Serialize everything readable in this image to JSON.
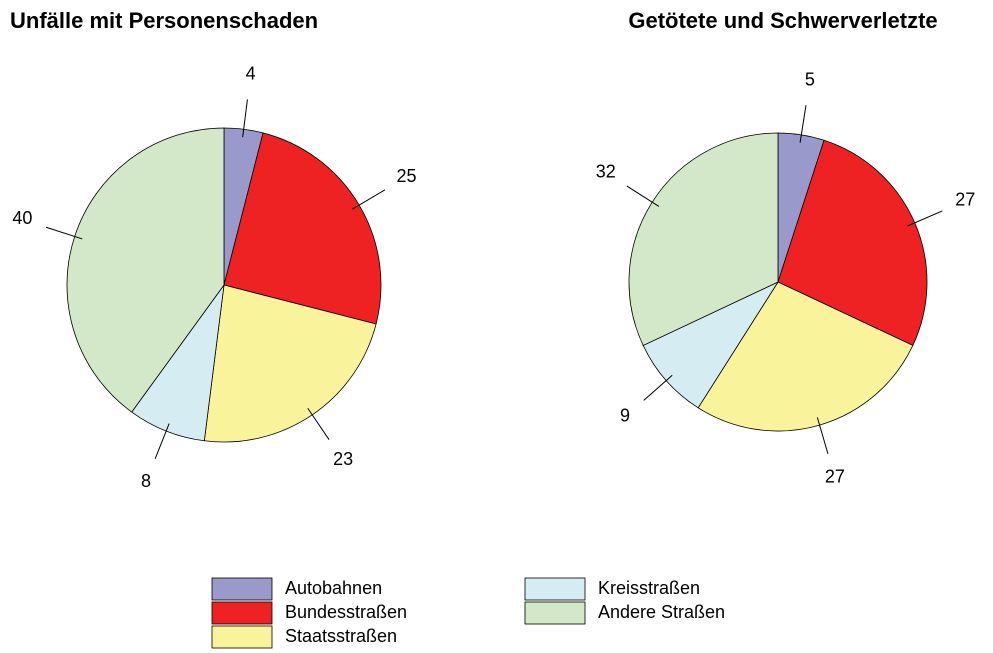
{
  "chart_data": [
    {
      "type": "pie",
      "title": "Unfälle mit Personenschaden",
      "categories": [
        "Autobahnen",
        "Bundesstraßen",
        "Staatsstraßen",
        "Kreisstraßen",
        "Andere Straßen"
      ],
      "values": [
        4,
        25,
        23,
        8,
        40
      ],
      "colors": [
        "#9999cc",
        "#ee2222",
        "#f9f49c",
        "#d5edf2",
        "#d2e8c8"
      ]
    },
    {
      "type": "pie",
      "title": "Getötete und Schwerverletzte",
      "categories": [
        "Autobahnen",
        "Bundesstraßen",
        "Staatsstraßen",
        "Kreisstraßen",
        "Andere Straßen"
      ],
      "values": [
        5,
        27,
        27,
        9,
        32
      ],
      "colors": [
        "#9999cc",
        "#ee2222",
        "#f9f49c",
        "#d5edf2",
        "#d2e8c8"
      ]
    }
  ]
}
